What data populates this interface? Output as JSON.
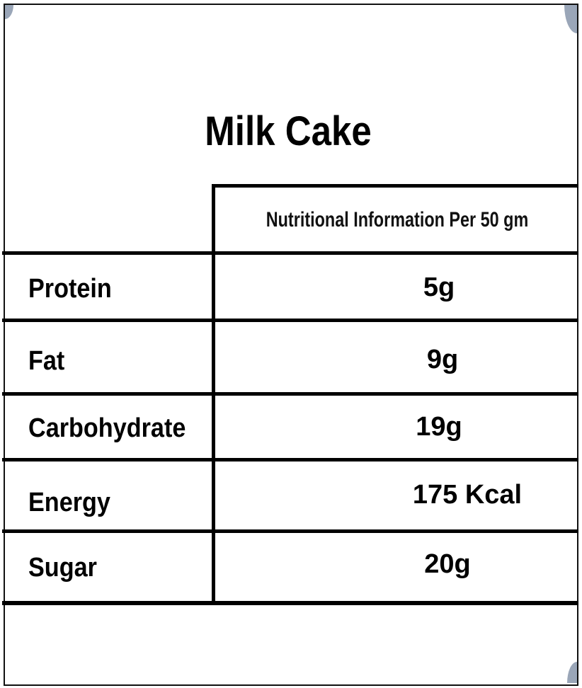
{
  "title": "Milk Cake",
  "table": {
    "header": "Nutritional Information Per 50 gm",
    "rows": [
      {
        "label": "Protein",
        "value": "5g"
      },
      {
        "label": "Fat",
        "value": "9g"
      },
      {
        "label": "Carbohydrate",
        "value": "19g"
      },
      {
        "label": "Energy",
        "value": "175 Kcal"
      },
      {
        "label": "Sugar",
        "value": "20g"
      }
    ]
  }
}
